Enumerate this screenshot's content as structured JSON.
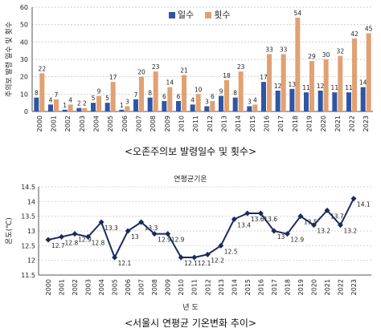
{
  "chart_data": [
    {
      "type": "bar",
      "ylabel": "주의보 발령 일수 및 횟수",
      "ylim": [
        0,
        60
      ],
      "yticks": [
        0,
        10,
        20,
        30,
        40,
        50,
        60
      ],
      "grid": true,
      "legend_position": "top",
      "categories": [
        "2000",
        "2001",
        "2002",
        "2003",
        "2004",
        "2005",
        "2006",
        "2007",
        "2008",
        "2009",
        "2010",
        "2011",
        "2012",
        "2013",
        "2014",
        "2015",
        "2016",
        "2017",
        "2018",
        "2019",
        "2020",
        "2021",
        "2022",
        "2023"
      ],
      "series": [
        {
          "name": "일수",
          "color": "#2f55a4",
          "values": [
            8,
            4,
            1,
            2,
            5,
            5,
            1,
            7,
            8,
            6,
            6,
            4,
            3,
            9,
            8,
            3,
            17,
            12,
            13,
            11,
            12,
            11,
            11,
            14
          ]
        },
        {
          "name": "횟수",
          "color": "#e1a173",
          "values": [
            22,
            7,
            4,
            2,
            9,
            17,
            3,
            20,
            23,
            14,
            21,
            10,
            6,
            18,
            23,
            4,
            33,
            33,
            54,
            29,
            30,
            32,
            42,
            45
          ]
        }
      ],
      "caption": "<오존주의보 발령일수 및 횟수>"
    },
    {
      "type": "line",
      "title": "연평균기온",
      "xlabel": "년 도",
      "ylabel": "온도(℃)",
      "ylim": [
        11.5,
        14.5
      ],
      "yticks": [
        11.5,
        12,
        12.5,
        13,
        13.5,
        14,
        14.5
      ],
      "yticklabels": [
        "11.5",
        "12",
        "12.5",
        "13",
        "13.5",
        "14",
        "14.5"
      ],
      "grid": true,
      "x": [
        "2000",
        "2001",
        "2002",
        "2003",
        "2004",
        "2005",
        "2006",
        "2007",
        "2008",
        "2009",
        "2010",
        "2011",
        "2012",
        "2013",
        "2014",
        "2015",
        "2016",
        "2017",
        "2018",
        "2019",
        "2020",
        "2021",
        "2022",
        "2023"
      ],
      "series": [
        {
          "color": "#1c2a5e",
          "values": [
            12.7,
            12.8,
            12.9,
            12.8,
            13.3,
            12.1,
            13,
            13.3,
            12.9,
            12.9,
            12.1,
            12.1,
            12.2,
            12.5,
            13.4,
            13.6,
            13.6,
            13,
            12.9,
            13.5,
            13.2,
            13.7,
            13.2,
            14.1
          ]
        }
      ],
      "value_labels": [
        "12.7",
        "12.8",
        "12.9",
        "12.8",
        "13.3",
        "12.1",
        "13",
        "13.3",
        "12.9",
        "12.9",
        "12.1",
        "12.1",
        "12.2",
        "12.5",
        "13.4",
        "13.6",
        "13.6",
        "13",
        "12.9",
        "13.5",
        "13.2",
        "13.7",
        "13.2",
        "14.1"
      ],
      "caption": "<서울시 연평균 기온변화 추이>"
    }
  ]
}
